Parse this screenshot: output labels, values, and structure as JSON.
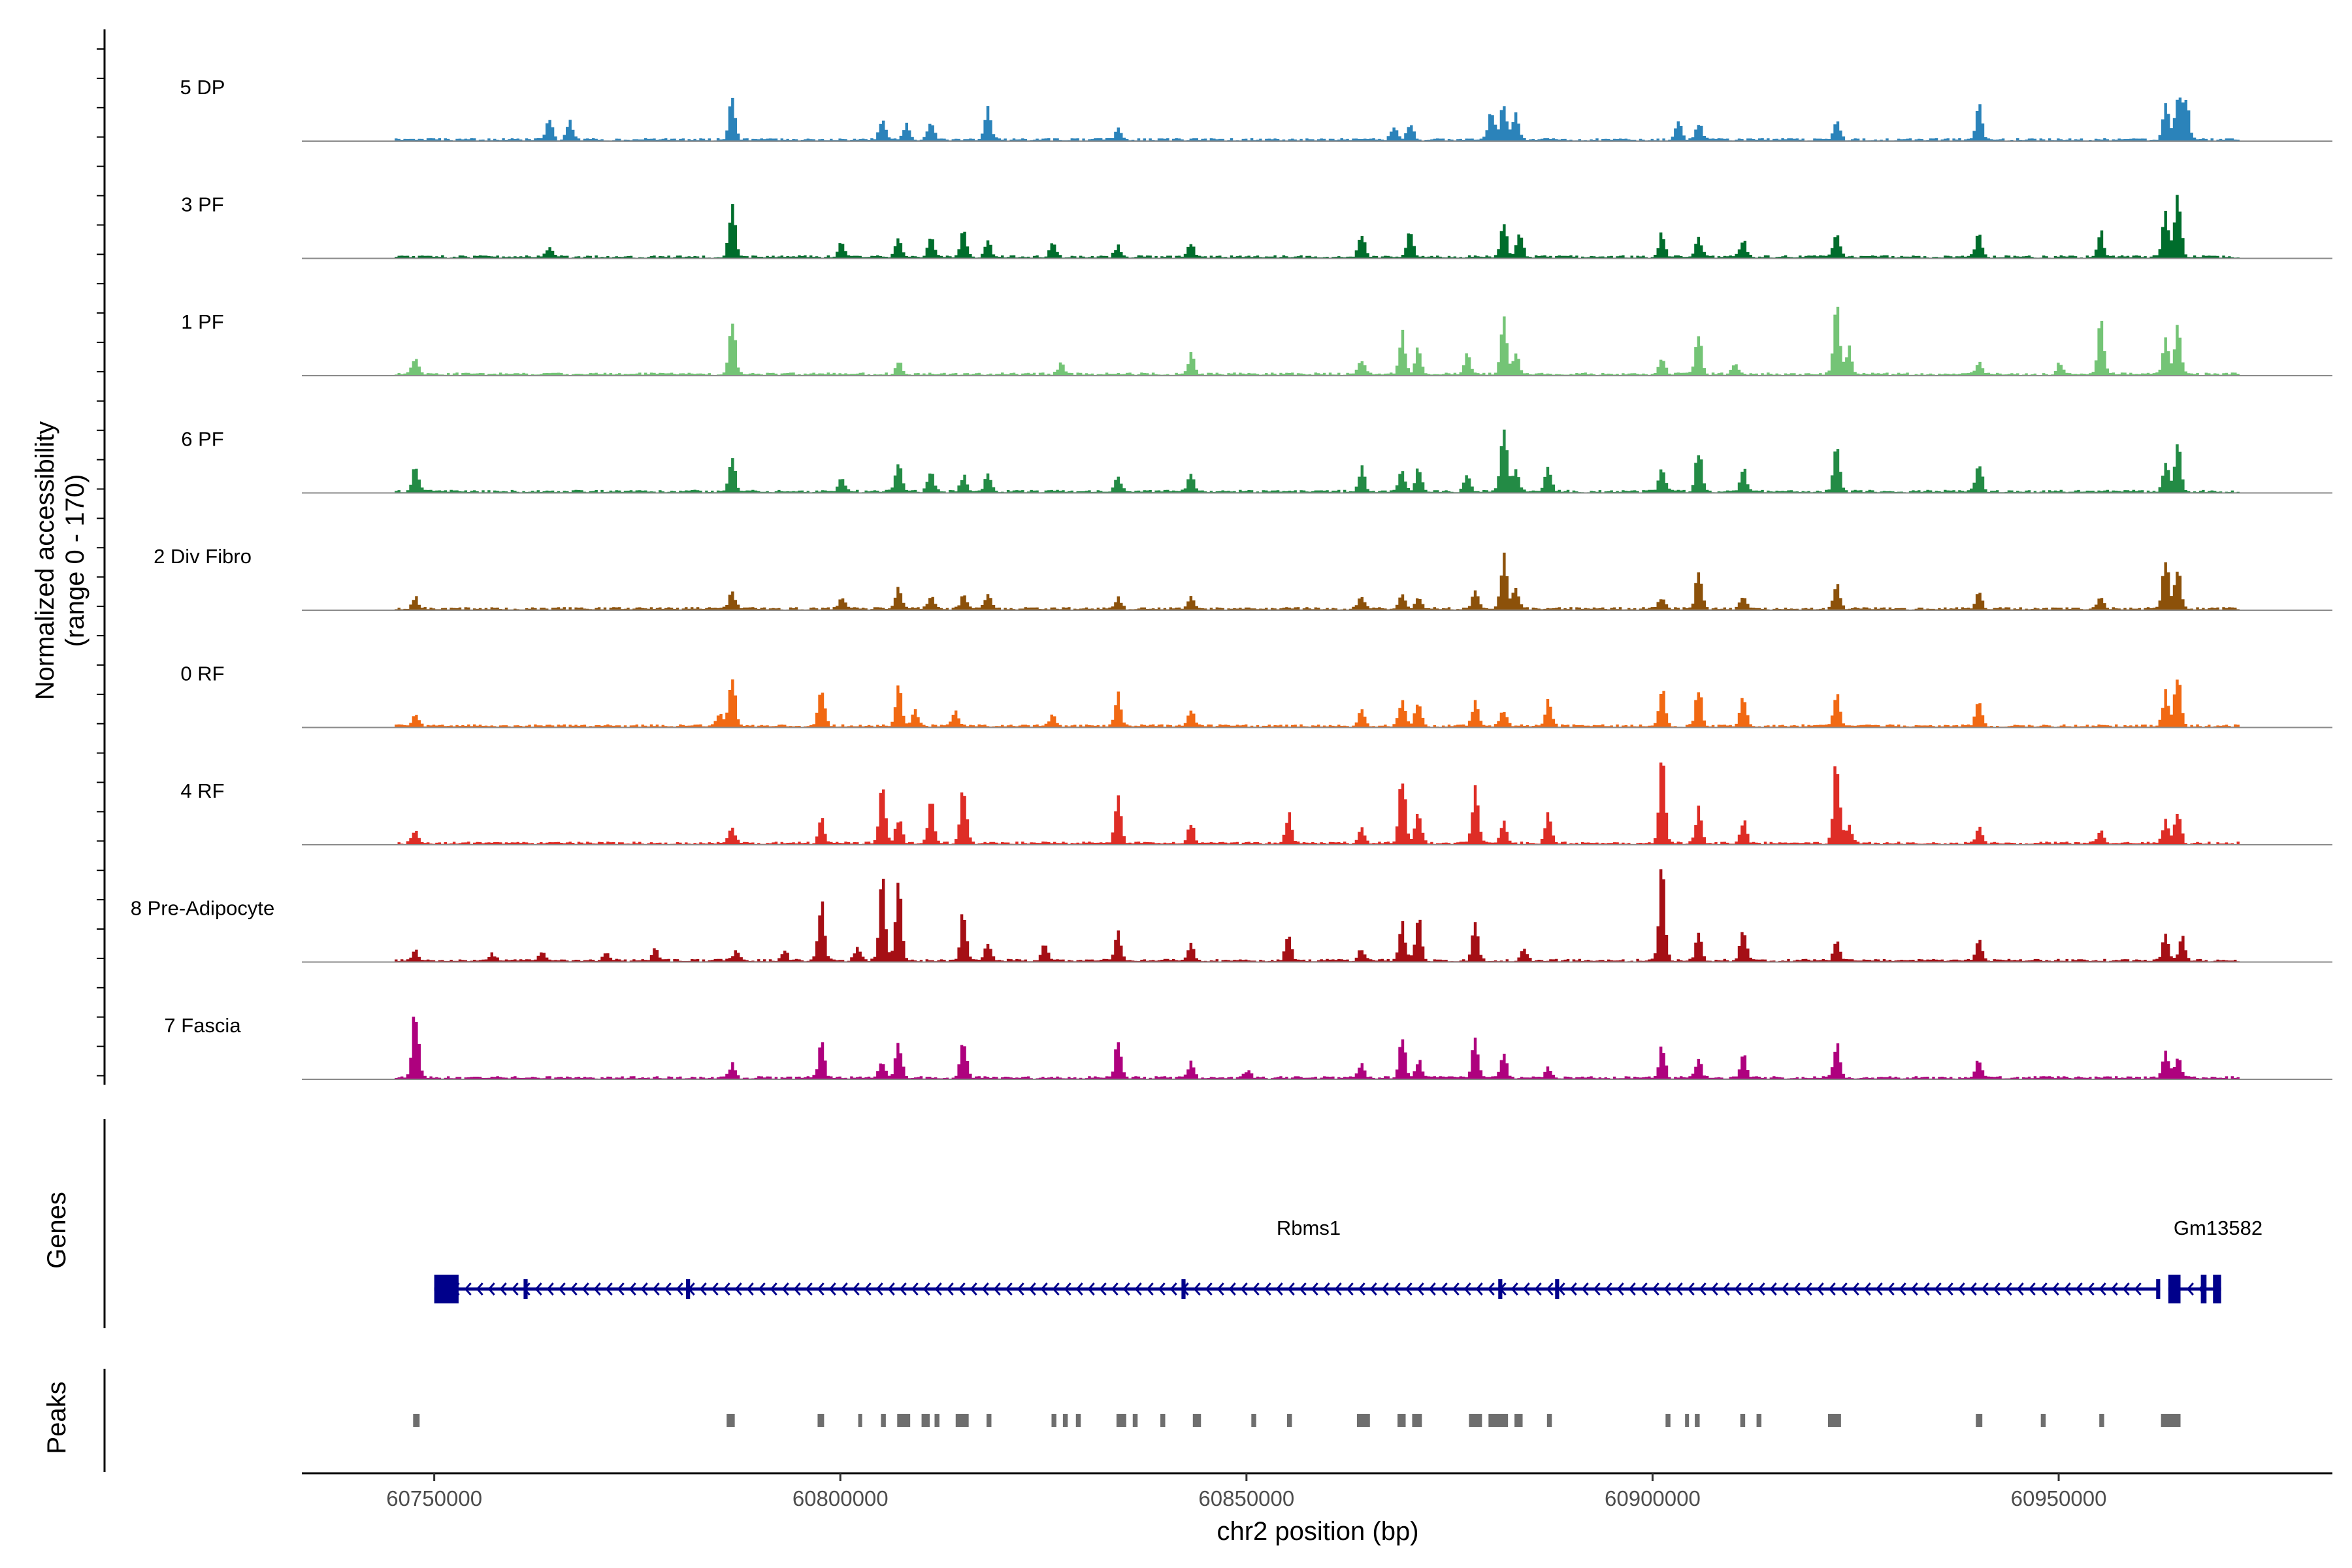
{
  "chart_data": {
    "type": "area",
    "title": "",
    "ylabel": "Normalized accessibility",
    "ylabel_range": "(range 0 - 170)",
    "ylim": [
      0,
      170
    ],
    "xlabel": "chr2 position (bp)",
    "xlim": [
      60733700,
      60983700
    ],
    "x_ticks": [
      60750000,
      60800000,
      60850000,
      60900000,
      60950000
    ],
    "x_tick_labels": [
      "60750000",
      "60800000",
      "60850000",
      "60900000",
      "60950000"
    ],
    "tracks": [
      {
        "name": "5 DP",
        "color": "#2b83ba",
        "peaks": [
          [
            60764000,
            35
          ],
          [
            60766500,
            30
          ],
          [
            60786500,
            80
          ],
          [
            60805000,
            35
          ],
          [
            60808000,
            25
          ],
          [
            60811000,
            30
          ],
          [
            60818000,
            55
          ],
          [
            60834000,
            20
          ],
          [
            60868000,
            20
          ],
          [
            60870000,
            30
          ],
          [
            60880000,
            50
          ],
          [
            60881500,
            65
          ],
          [
            60883000,
            45
          ],
          [
            60903000,
            35
          ],
          [
            60905500,
            30
          ],
          [
            60922500,
            40
          ],
          [
            60940000,
            60
          ],
          [
            60963000,
            65
          ],
          [
            60964500,
            75
          ],
          [
            60965500,
            70
          ]
        ]
      },
      {
        "name": "3 PF",
        "color": "#006d2c",
        "peaks": [
          [
            60764000,
            20
          ],
          [
            60786500,
            95
          ],
          [
            60800000,
            25
          ],
          [
            60807000,
            30
          ],
          [
            60811000,
            35
          ],
          [
            60815000,
            45
          ],
          [
            60818000,
            30
          ],
          [
            60826000,
            25
          ],
          [
            60834000,
            20
          ],
          [
            60843000,
            25
          ],
          [
            60864000,
            40
          ],
          [
            60870000,
            45
          ],
          [
            60881500,
            60
          ],
          [
            60883500,
            40
          ],
          [
            60901000,
            40
          ],
          [
            60905500,
            35
          ],
          [
            60911000,
            30
          ],
          [
            60922500,
            40
          ],
          [
            60940000,
            45
          ],
          [
            60955000,
            45
          ],
          [
            60963000,
            80
          ],
          [
            60964500,
            120
          ]
        ]
      },
      {
        "name": "1 PF",
        "color": "#74c476",
        "peaks": [
          [
            60747500,
            30
          ],
          [
            60786500,
            100
          ],
          [
            60807000,
            20
          ],
          [
            60827000,
            20
          ],
          [
            60843000,
            35
          ],
          [
            60864000,
            25
          ],
          [
            60869000,
            70
          ],
          [
            60871000,
            45
          ],
          [
            60877000,
            35
          ],
          [
            60881500,
            95
          ],
          [
            60883000,
            40
          ],
          [
            60901000,
            30
          ],
          [
            60905500,
            70
          ],
          [
            60910000,
            20
          ],
          [
            60922500,
            120
          ],
          [
            60924000,
            45
          ],
          [
            60940000,
            20
          ],
          [
            60950000,
            20
          ],
          [
            60955000,
            90
          ],
          [
            60963000,
            60
          ],
          [
            60964500,
            80
          ]
        ]
      },
      {
        "name": "6 PF",
        "color": "#238b45",
        "peaks": [
          [
            60747500,
            45
          ],
          [
            60786500,
            60
          ],
          [
            60800000,
            25
          ],
          [
            60807000,
            55
          ],
          [
            60811000,
            35
          ],
          [
            60815000,
            30
          ],
          [
            60818000,
            30
          ],
          [
            60834000,
            25
          ],
          [
            60843000,
            35
          ],
          [
            60864000,
            40
          ],
          [
            60869000,
            35
          ],
          [
            60871000,
            40
          ],
          [
            60877000,
            30
          ],
          [
            60881500,
            125
          ],
          [
            60883000,
            40
          ],
          [
            60887000,
            45
          ],
          [
            60901000,
            40
          ],
          [
            60905500,
            75
          ],
          [
            60911000,
            40
          ],
          [
            60922500,
            80
          ],
          [
            60940000,
            50
          ],
          [
            60963000,
            50
          ],
          [
            60964500,
            80
          ]
        ]
      },
      {
        "name": "2 Div Fibro",
        "color": "#8c510a",
        "peaks": [
          [
            60747500,
            20
          ],
          [
            60786500,
            30
          ],
          [
            60800000,
            20
          ],
          [
            60807000,
            40
          ],
          [
            60811000,
            20
          ],
          [
            60815000,
            25
          ],
          [
            60818000,
            25
          ],
          [
            60834000,
            20
          ],
          [
            60843000,
            20
          ],
          [
            60864000,
            20
          ],
          [
            60869000,
            25
          ],
          [
            60871000,
            20
          ],
          [
            60878000,
            30
          ],
          [
            60881500,
            90
          ],
          [
            60883000,
            40
          ],
          [
            60901000,
            20
          ],
          [
            60905500,
            65
          ],
          [
            60911000,
            20
          ],
          [
            60922500,
            50
          ],
          [
            60940000,
            30
          ],
          [
            60955000,
            20
          ],
          [
            60963000,
            85
          ],
          [
            60964500,
            70
          ]
        ]
      },
      {
        "name": "0 RF",
        "color": "#f16913",
        "peaks": [
          [
            60747500,
            20
          ],
          [
            60785000,
            20
          ],
          [
            60786500,
            90
          ],
          [
            60797500,
            70
          ],
          [
            60807000,
            70
          ],
          [
            60809000,
            30
          ],
          [
            60814000,
            25
          ],
          [
            60826000,
            20
          ],
          [
            60834000,
            55
          ],
          [
            60843000,
            30
          ],
          [
            60864000,
            30
          ],
          [
            60869000,
            50
          ],
          [
            60871000,
            45
          ],
          [
            60878000,
            45
          ],
          [
            60881500,
            30
          ],
          [
            60887000,
            45
          ],
          [
            60901000,
            70
          ],
          [
            60905500,
            65
          ],
          [
            60911000,
            55
          ],
          [
            60922500,
            60
          ],
          [
            60940000,
            45
          ],
          [
            60963000,
            60
          ],
          [
            60964500,
            95
          ]
        ]
      },
      {
        "name": "4 RF",
        "color": "#de2d26",
        "peaks": [
          [
            60747500,
            25
          ],
          [
            60786500,
            30
          ],
          [
            60797500,
            40
          ],
          [
            60805000,
            95
          ],
          [
            60807000,
            45
          ],
          [
            60811000,
            70
          ],
          [
            60815000,
            95
          ],
          [
            60834000,
            80
          ],
          [
            60843000,
            35
          ],
          [
            60855000,
            50
          ],
          [
            60864000,
            25
          ],
          [
            60869000,
            125
          ],
          [
            60871000,
            60
          ],
          [
            60878000,
            100
          ],
          [
            60881500,
            35
          ],
          [
            60887000,
            55
          ],
          [
            60901000,
            150
          ],
          [
            60905500,
            60
          ],
          [
            60911000,
            40
          ],
          [
            60922500,
            150
          ],
          [
            60924000,
            35
          ],
          [
            60940000,
            25
          ],
          [
            60955000,
            20
          ],
          [
            60963000,
            40
          ],
          [
            60964500,
            60
          ]
        ]
      },
      {
        "name": "8 Pre-Adipocyte",
        "color": "#a50f15",
        "peaks": [
          [
            60747500,
            20
          ],
          [
            60757000,
            12
          ],
          [
            60763000,
            15
          ],
          [
            60771000,
            12
          ],
          [
            60777000,
            20
          ],
          [
            60787000,
            20
          ],
          [
            60793000,
            15
          ],
          [
            60797500,
            105
          ],
          [
            60802000,
            25
          ],
          [
            60805000,
            140
          ],
          [
            60807000,
            150
          ],
          [
            60815000,
            85
          ],
          [
            60818000,
            30
          ],
          [
            60825000,
            30
          ],
          [
            60834000,
            50
          ],
          [
            60843000,
            30
          ],
          [
            60855000,
            50
          ],
          [
            60864000,
            20
          ],
          [
            60869000,
            65
          ],
          [
            60871000,
            75
          ],
          [
            60878000,
            65
          ],
          [
            60884000,
            20
          ],
          [
            60901000,
            155
          ],
          [
            60905500,
            45
          ],
          [
            60911000,
            60
          ],
          [
            60922500,
            35
          ],
          [
            60940000,
            35
          ],
          [
            60963000,
            45
          ],
          [
            60965000,
            40
          ]
        ]
      },
      {
        "name": "7 Fascia",
        "color": "#ae017e",
        "peaks": [
          [
            60747500,
            120
          ],
          [
            60786500,
            25
          ],
          [
            60797500,
            60
          ],
          [
            60805000,
            30
          ],
          [
            60807000,
            60
          ],
          [
            60815000,
            70
          ],
          [
            60834000,
            60
          ],
          [
            60843000,
            25
          ],
          [
            60850000,
            15
          ],
          [
            60864000,
            25
          ],
          [
            60869000,
            70
          ],
          [
            60871000,
            30
          ],
          [
            60878000,
            70
          ],
          [
            60881500,
            40
          ],
          [
            60887000,
            20
          ],
          [
            60901000,
            55
          ],
          [
            60905500,
            35
          ],
          [
            60911000,
            40
          ],
          [
            60922500,
            60
          ],
          [
            60940000,
            30
          ],
          [
            60963000,
            50
          ],
          [
            60964500,
            40
          ]
        ]
      }
    ],
    "genes": {
      "label": "Genes",
      "items": [
        {
          "name": "Rbms1",
          "start": 60750000,
          "end": 60962500,
          "strand": "-",
          "color": "#00008b",
          "exons": [
            [
              60750000,
              60753000
            ],
            [
              60761000,
              60761500
            ],
            [
              60781000,
              60781500
            ],
            [
              60842000,
              60842500
            ],
            [
              60881000,
              60881500
            ],
            [
              60888000,
              60888500
            ],
            [
              60962000,
              60962500
            ]
          ]
        },
        {
          "name": "Gm13582",
          "start": 60963500,
          "end": 60970000,
          "strand": "-",
          "color": "#00008b",
          "exons": [
            [
              60963500,
              60965000
            ],
            [
              60967500,
              60968200
            ],
            [
              60969000,
              60970000
            ]
          ]
        }
      ]
    },
    "peaks_track": {
      "label": "Peaks",
      "color": "#6e6e6e",
      "regions": [
        [
          60747400,
          60748200
        ],
        [
          60786000,
          60787000
        ],
        [
          60797200,
          60798000
        ],
        [
          60802200,
          60802600
        ],
        [
          60805000,
          60805600
        ],
        [
          60807000,
          60808600
        ],
        [
          60810000,
          60811000
        ],
        [
          60811600,
          60812200
        ],
        [
          60814200,
          60815800
        ],
        [
          60818000,
          60818600
        ],
        [
          60826000,
          60826600
        ],
        [
          60827400,
          60828000
        ],
        [
          60829000,
          60829600
        ],
        [
          60834000,
          60835200
        ],
        [
          60836000,
          60836600
        ],
        [
          60839400,
          60840000
        ],
        [
          60843400,
          60844400
        ],
        [
          60850600,
          60851200
        ],
        [
          60855000,
          60855600
        ],
        [
          60863600,
          60865200
        ],
        [
          60868600,
          60869600
        ],
        [
          60870400,
          60871600
        ],
        [
          60877400,
          60879000
        ],
        [
          60879800,
          60882200
        ],
        [
          60883000,
          60884000
        ],
        [
          60887000,
          60887600
        ],
        [
          60901600,
          60902200
        ],
        [
          60904000,
          60904400
        ],
        [
          60905200,
          60905800
        ],
        [
          60910800,
          60911400
        ],
        [
          60912800,
          60913400
        ],
        [
          60921600,
          60923200
        ],
        [
          60939800,
          60940600
        ],
        [
          60947800,
          60948400
        ],
        [
          60955000,
          60955600
        ],
        [
          60962600,
          60965000
        ]
      ]
    }
  }
}
